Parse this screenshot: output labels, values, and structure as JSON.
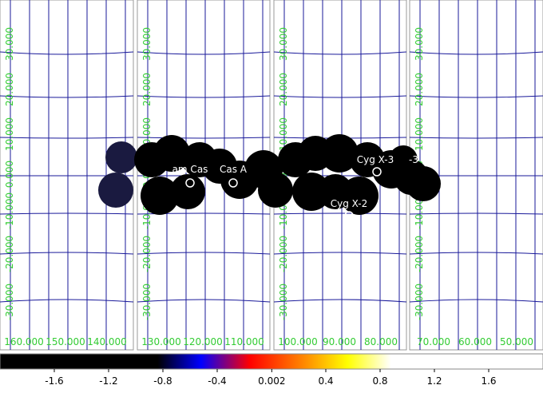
{
  "panels": [
    {
      "x_labels": [
        "160.000",
        "150.000",
        "140.000"
      ],
      "y_labels": [
        "30.000",
        "20.000",
        "10.000",
        "0.000",
        "-10.000",
        "-20.000",
        "-30.000"
      ]
    },
    {
      "x_labels": [
        "130.000",
        "120.000",
        "110.000"
      ],
      "y_labels": [
        "30.000",
        "20.000",
        "10.000",
        "0.000",
        "-10.000",
        "-20.000",
        "-30.000"
      ]
    },
    {
      "x_labels": [
        "100.000",
        "90.000",
        "80.000"
      ],
      "y_labels": [
        "30.000",
        "20.000",
        "10.000",
        "0.000",
        "-10.000",
        "-20.000",
        "-30.000"
      ]
    },
    {
      "x_labels": [
        "70.000",
        "60.000",
        "50.000"
      ],
      "y_labels": [
        "30.000",
        "20.000",
        "10.000",
        "0.000",
        "-10.000",
        "-20.000",
        "-30.000"
      ]
    }
  ],
  "sources": [
    "am Cas",
    "Cas A",
    "Cyg X-3",
    "-3",
    "Cyg X-2"
  ],
  "colorbar": {
    "min": -2,
    "max": 2,
    "ticks": [
      -1.6,
      -1.2,
      -0.8,
      -0.4,
      0.002,
      0.4,
      0.8,
      1.2,
      1.6
    ]
  }
}
